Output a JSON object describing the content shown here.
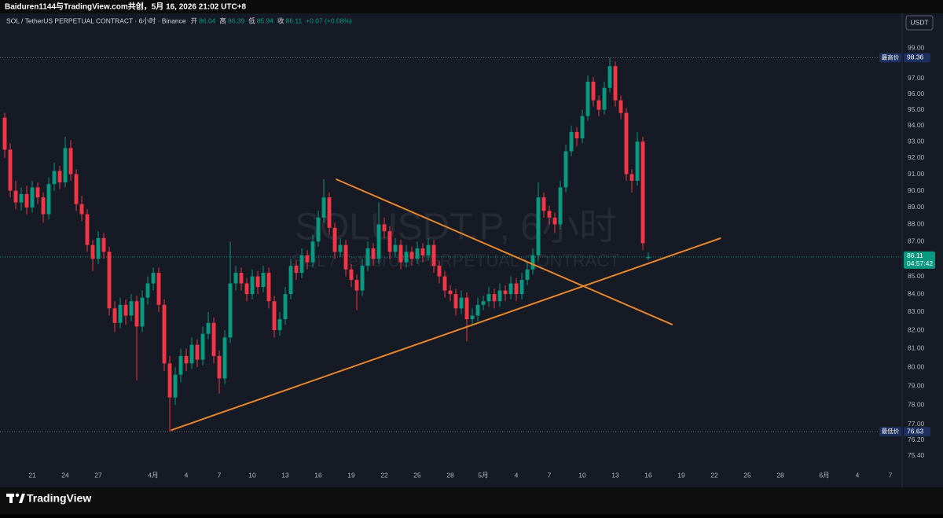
{
  "header": {
    "attribution": "Baiduren1144与TradingView.com共创，5月 16, 2026 21:02 UTC+8",
    "legend": "SOL / TetherUS PERPETUAL CONTRACT · 6小时 · Binance",
    "open_label": "开",
    "high_label": "高",
    "low_label": "低",
    "close_label": "收",
    "change": "+0.07 (+0.08%)",
    "currency": "USDT"
  },
  "chart_data": {
    "type": "candlestick",
    "watermark": "SOLUSDT.P, 6小时",
    "watermark_subtitle": "SOL / TetherUS PERPETUAL CONTRACT",
    "up_color": "#089981",
    "down_color": "#f23645",
    "log_scale": true,
    "grid": false,
    "xlim": [
      18.07,
      100.07
    ],
    "xticks": [
      21,
      24,
      27,
      {
        "value": 32,
        "label": "4月"
      },
      {
        "value": 35,
        "label": "4"
      },
      {
        "value": 38,
        "label": "7"
      },
      {
        "value": 41,
        "label": "10"
      },
      {
        "value": 44,
        "label": "13"
      },
      {
        "value": 47,
        "label": "16"
      },
      {
        "value": 50,
        "label": "19"
      },
      {
        "value": 53,
        "label": "22"
      },
      {
        "value": 56,
        "label": "25"
      },
      {
        "value": 59,
        "label": "28"
      },
      {
        "value": 62,
        "label": "5月"
      },
      {
        "value": 65,
        "label": "4"
      },
      {
        "value": 68,
        "label": "7"
      },
      {
        "value": 71,
        "label": "10"
      },
      {
        "value": 74,
        "label": "13"
      },
      {
        "value": 77,
        "label": "16"
      },
      {
        "value": 80,
        "label": "19"
      },
      {
        "value": 83,
        "label": "22"
      },
      {
        "value": 86,
        "label": "25"
      },
      {
        "value": 89,
        "label": "28"
      },
      {
        "value": 93,
        "label": "6月"
      },
      {
        "value": 96,
        "label": "4"
      },
      {
        "value": 99,
        "label": "7"
      }
    ],
    "ylim": [
      74.69,
      100.36
    ],
    "yticks": [
      {
        "value": 99,
        "label": "99.00"
      },
      {
        "value": 97,
        "label": "97.00"
      },
      {
        "value": 96,
        "label": "96.00"
      },
      {
        "value": 95,
        "label": "95.00"
      },
      {
        "value": 94,
        "label": "94.00"
      },
      {
        "value": 93,
        "label": "93.00"
      },
      {
        "value": 92,
        "label": "92.00"
      },
      {
        "value": 91,
        "label": "91.00"
      },
      {
        "value": 90,
        "label": "90.00"
      },
      {
        "value": 89,
        "label": "89.00"
      },
      {
        "value": 88,
        "label": "88.00"
      },
      {
        "value": 87,
        "label": "87.00"
      },
      {
        "value": 85,
        "label": "85.00"
      },
      {
        "value": 84,
        "label": "84.00"
      },
      {
        "value": 83,
        "label": "83.00"
      },
      {
        "value": 82,
        "label": "82.00"
      },
      {
        "value": 81,
        "label": "81.00"
      },
      {
        "value": 80,
        "label": "80.00"
      },
      {
        "value": 79,
        "label": "79.00"
      },
      {
        "value": 78,
        "label": "78.00"
      },
      {
        "value": 77,
        "label": "77.00"
      },
      {
        "value": 76.2,
        "label": "76.20"
      },
      {
        "value": 75.4,
        "label": "75.40"
      }
    ],
    "high_label": "最高价",
    "low_label": "最低价",
    "countdown": "04:57:42",
    "x": [
      18.5,
      19,
      19.5,
      20,
      20.5,
      21,
      21.5,
      22,
      22.5,
      23,
      23.5,
      24,
      24.5,
      25,
      25.5,
      26,
      26.5,
      27,
      27.5,
      28,
      28.5,
      29,
      29.5,
      30,
      30.5,
      31,
      31.5,
      32,
      32.5,
      33,
      33.5,
      34,
      34.5,
      35,
      35.5,
      36,
      36.5,
      37,
      37.5,
      38,
      38.5,
      39,
      39.5,
      40,
      40.5,
      41,
      41.5,
      42,
      42.5,
      43,
      43.5,
      44,
      44.5,
      45,
      45.5,
      46,
      46.5,
      47,
      47.5,
      48,
      48.5,
      49,
      49.5,
      50,
      50.5,
      51,
      51.5,
      52,
      52.5,
      53,
      53.5,
      54,
      54.5,
      55,
      55.5,
      56,
      56.5,
      57,
      57.5,
      58,
      58.5,
      59,
      59.5,
      60,
      60.5,
      61,
      61.5,
      62,
      62.5,
      63,
      63.5,
      64,
      64.5,
      65,
      65.5,
      66,
      66.5,
      67,
      67.5,
      68,
      68.5,
      69,
      69.5,
      70,
      70.5,
      71,
      71.5,
      72,
      72.5,
      73,
      73.5,
      74,
      74.5,
      75,
      75.5,
      76,
      76.5,
      77
    ],
    "open": [
      94.5,
      92.5,
      90.0,
      89.3,
      89.8,
      89.0,
      90.2,
      89.6,
      88.6,
      90.4,
      91.2,
      90.5,
      92.6,
      91.0,
      89.2,
      88.6,
      86.8,
      86.0,
      87.2,
      86.4,
      83.2,
      82.4,
      83.4,
      82.8,
      83.6,
      82.2,
      83.8,
      84.6,
      85.2,
      83.4,
      80.2,
      78.4,
      79.6,
      80.6,
      80.2,
      81.2,
      80.4,
      81.8,
      82.4,
      80.6,
      79.4,
      81.6,
      84.6,
      85.2,
      84.6,
      84.0,
      85.0,
      84.4,
      85.2,
      83.6,
      82.0,
      82.6,
      84.0,
      85.6,
      85.2,
      86.2,
      85.8,
      87.0,
      88.4,
      89.6,
      87.8,
      86.4,
      86.8,
      85.4,
      84.8,
      84.2,
      85.6,
      86.6,
      86.0,
      88.0,
      87.6,
      86.4,
      86.8,
      85.8,
      86.4,
      86.0,
      86.6,
      86.2,
      86.8,
      85.6,
      85.0,
      84.2,
      84.0,
      83.2,
      83.8,
      82.6,
      82.8,
      83.4,
      83.6,
      84.0,
      83.6,
      84.2,
      84.0,
      84.6,
      84.0,
      84.8,
      85.4,
      86.2,
      89.6,
      88.8,
      88.4,
      88.0,
      90.2,
      92.4,
      93.6,
      93.2,
      94.6,
      96.8,
      95.6,
      95.0,
      96.4,
      97.8,
      95.6,
      94.8,
      91.0,
      90.6,
      93.0,
      86.04
    ],
    "high": [
      94.8,
      92.9,
      90.6,
      90.2,
      90.3,
      90.6,
      90.5,
      89.9,
      90.8,
      91.7,
      91.5,
      93.3,
      93.1,
      91.3,
      89.7,
      88.9,
      87.1,
      87.6,
      87.5,
      86.7,
      83.6,
      83.8,
      83.7,
      84.0,
      83.9,
      84.2,
      85.0,
      85.5,
      85.5,
      83.7,
      80.6,
      80.0,
      81.0,
      81.0,
      81.6,
      81.5,
      82.2,
      83.0,
      82.7,
      80.9,
      82.0,
      87.0,
      85.6,
      85.5,
      84.9,
      85.4,
      85.3,
      85.6,
      85.5,
      83.9,
      83.0,
      84.4,
      86.0,
      85.9,
      86.6,
      86.5,
      87.4,
      88.8,
      90.7,
      89.9,
      88.1,
      87.2,
      87.1,
      85.7,
      85.1,
      86.0,
      87.0,
      86.9,
      89.3,
      88.4,
      87.9,
      87.2,
      87.1,
      86.8,
      86.7,
      87.0,
      86.9,
      87.2,
      87.1,
      85.9,
      85.3,
      84.5,
      84.3,
      84.2,
      84.1,
      83.2,
      83.8,
      83.9,
      84.4,
      84.3,
      84.6,
      84.5,
      85.0,
      84.9,
      85.2,
      85.8,
      86.6,
      90.5,
      89.9,
      89.1,
      88.7,
      90.6,
      92.8,
      94.0,
      93.9,
      95.0,
      97.2,
      97.1,
      95.9,
      96.8,
      98.36,
      98.1,
      95.9,
      95.1,
      91.3,
      93.6,
      93.3,
      86.39
    ],
    "low": [
      92.0,
      89.6,
      88.9,
      88.8,
      88.6,
      88.7,
      89.2,
      88.1,
      88.3,
      90.0,
      90.1,
      90.2,
      90.6,
      88.8,
      88.2,
      86.4,
      85.3,
      85.7,
      86.0,
      82.8,
      81.9,
      82.1,
      82.3,
      82.5,
      79.3,
      81.9,
      83.4,
      84.2,
      83.0,
      79.8,
      76.63,
      78.0,
      79.2,
      79.8,
      79.9,
      80.0,
      80.1,
      81.5,
      80.2,
      78.6,
      79.1,
      81.3,
      84.2,
      84.2,
      83.6,
      83.7,
      84.0,
      84.1,
      83.2,
      81.6,
      81.7,
      82.3,
      83.7,
      84.8,
      84.9,
      85.4,
      85.5,
      86.7,
      88.1,
      87.4,
      86.0,
      86.1,
      85.0,
      84.4,
      83.1,
      83.9,
      85.3,
      85.6,
      85.7,
      87.2,
      86.0,
      86.1,
      85.4,
      85.5,
      85.6,
      85.7,
      85.8,
      85.9,
      85.2,
      84.6,
      83.8,
      83.6,
      82.8,
      82.9,
      81.4,
      82.3,
      82.5,
      83.1,
      83.3,
      83.2,
      83.3,
      83.6,
      83.7,
      83.6,
      83.7,
      84.5,
      85.1,
      85.9,
      88.4,
      88.0,
      87.5,
      87.7,
      89.9,
      92.1,
      92.7,
      92.9,
      94.3,
      95.2,
      94.6,
      94.7,
      96.1,
      95.2,
      94.4,
      90.6,
      89.9,
      90.3,
      86.5,
      85.94
    ],
    "close": [
      92.5,
      90.0,
      89.3,
      89.8,
      89.0,
      90.2,
      89.6,
      88.6,
      90.4,
      91.2,
      90.5,
      92.6,
      91.0,
      89.2,
      88.6,
      86.8,
      86.0,
      87.2,
      86.4,
      83.2,
      82.4,
      83.4,
      82.8,
      83.6,
      82.2,
      83.8,
      84.6,
      85.2,
      83.4,
      80.2,
      78.4,
      79.6,
      80.6,
      80.2,
      81.2,
      80.4,
      81.8,
      82.4,
      80.6,
      79.4,
      81.6,
      84.6,
      85.2,
      84.6,
      84.0,
      85.0,
      84.4,
      85.2,
      83.6,
      82.0,
      82.6,
      84.0,
      85.6,
      85.2,
      86.2,
      85.8,
      87.0,
      88.4,
      89.6,
      87.8,
      86.4,
      86.8,
      85.4,
      84.8,
      84.2,
      85.6,
      86.6,
      86.0,
      88.0,
      87.6,
      86.4,
      86.8,
      85.8,
      86.4,
      86.0,
      86.6,
      86.2,
      86.8,
      85.6,
      85.0,
      84.2,
      84.0,
      83.2,
      83.8,
      82.6,
      82.8,
      83.4,
      83.6,
      84.0,
      83.6,
      84.2,
      84.0,
      84.6,
      84.0,
      84.8,
      85.4,
      86.2,
      89.6,
      88.8,
      88.4,
      88.0,
      90.2,
      92.4,
      93.6,
      93.2,
      94.6,
      96.8,
      95.6,
      95.0,
      96.4,
      97.8,
      95.6,
      94.8,
      91.0,
      90.6,
      93.0,
      86.9,
      86.11
    ],
    "trendlines": [
      {
        "x": [
          33.6,
          83.6
        ],
        "y": [
          76.7,
          87.2
        ],
        "color": "#e8862a"
      },
      {
        "x": [
          48.6,
          79.2
        ],
        "y": [
          90.7,
          82.3
        ],
        "color": "#e8862a"
      }
    ]
  },
  "footer": {
    "brand": "TradingView"
  }
}
